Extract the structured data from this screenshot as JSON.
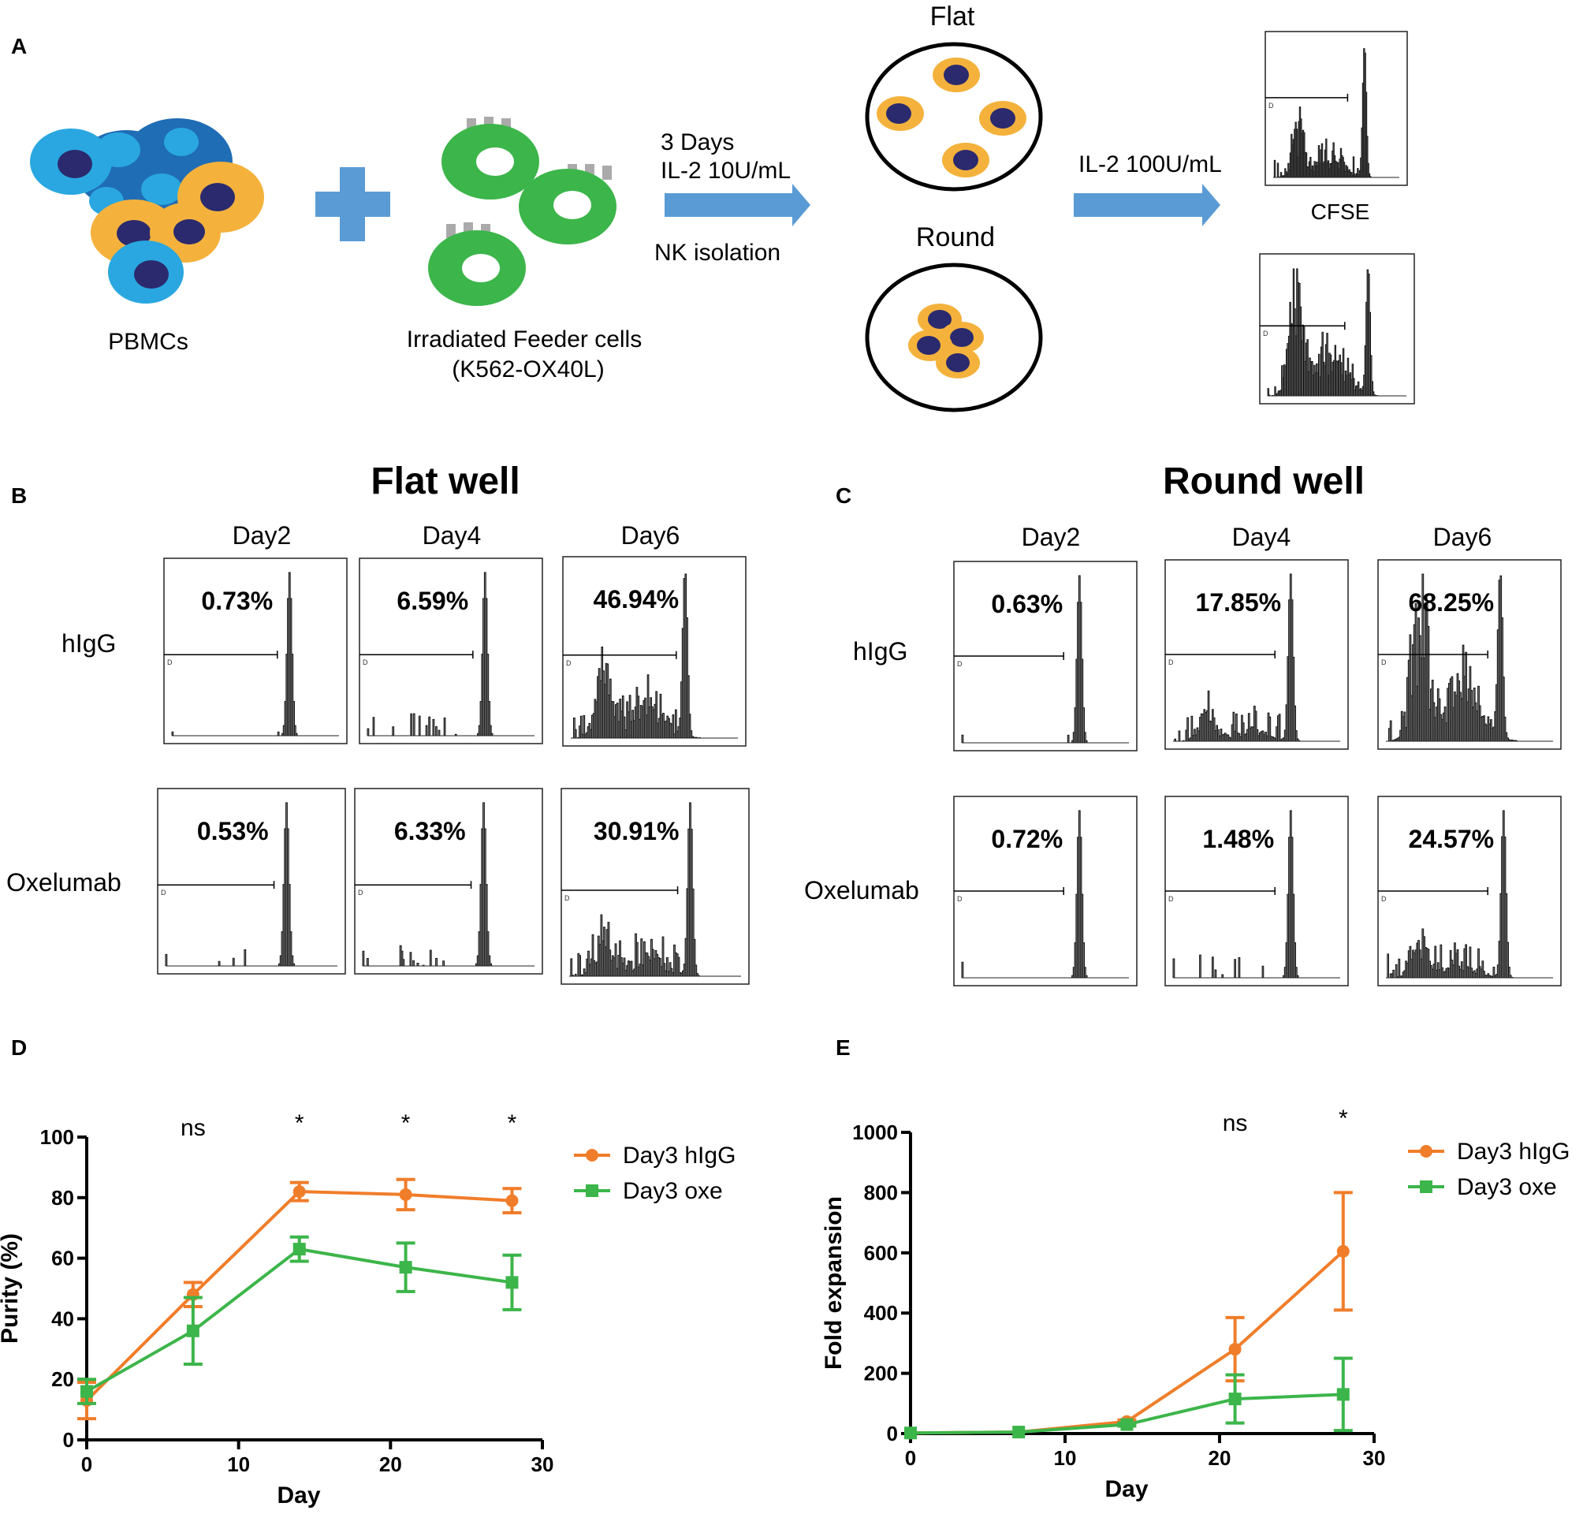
{
  "panels": {
    "A": "A",
    "B": "B",
    "C": "C",
    "D": "D",
    "E": "E"
  },
  "schematic": {
    "pbmc_label": "PBMCs",
    "feeder_label_1": "Irradiated Feeder cells",
    "feeder_label_2": "(K562-OX40L)",
    "step1_line1": "3 Days",
    "step1_line2": "IL-2 10U/mL",
    "step1_line3": "NK isolation",
    "flat_label": "Flat",
    "round_label": "Round",
    "step2_label": "IL-2 100U/mL",
    "cfse_label": "CFSE",
    "gate_label": "D",
    "colors": {
      "blue_cell": "#2aa7e0",
      "dark_blue_cell": "#1f6db5",
      "orange_cell": "#f4b23c",
      "nucleus": "#2b2a6e",
      "feeder": "#3cb54a",
      "arrow": "#5b9bd5"
    }
  },
  "flat_well": {
    "title": "Flat well",
    "days": [
      "Day2",
      "Day4",
      "Day6"
    ],
    "rows": [
      "hIgG",
      "Oxelumab"
    ],
    "values": [
      [
        "0.73%",
        "6.59%",
        "46.94%"
      ],
      [
        "0.53%",
        "6.33%",
        "30.91%"
      ]
    ]
  },
  "round_well": {
    "title": "Round well",
    "days": [
      "Day2",
      "Day4",
      "Day6"
    ],
    "rows": [
      "hIgG",
      "Oxelumab"
    ],
    "values": [
      [
        "0.63%",
        "17.85%",
        "68.25%"
      ],
      [
        "0.72%",
        "1.48%",
        "24.57%"
      ]
    ]
  },
  "chart_data": [
    {
      "type": "line",
      "panel": "D",
      "xlabel": "Day",
      "ylabel": "Purity (%)",
      "xlim": [
        0,
        30
      ],
      "ylim": [
        0,
        100
      ],
      "xticks": [
        "0",
        "10",
        "20",
        "30"
      ],
      "yticks": [
        "0",
        "20",
        "40",
        "60",
        "80",
        "100"
      ],
      "x": [
        0,
        7,
        14,
        21,
        28
      ],
      "series": [
        {
          "name": "Day3 hIgG",
          "color": "#f07d2a",
          "values": [
            13,
            48,
            82,
            81,
            79
          ],
          "errors": [
            6,
            4,
            3,
            5,
            4
          ]
        },
        {
          "name": "Day3 oxe",
          "color": "#3cb54a",
          "values": [
            16,
            36,
            63,
            57,
            52
          ],
          "errors": [
            4,
            11,
            4,
            8,
            9
          ]
        }
      ],
      "annotations": [
        {
          "x": 7,
          "text": "ns"
        },
        {
          "x": 14,
          "text": "*"
        },
        {
          "x": 21,
          "text": "*"
        },
        {
          "x": 28,
          "text": "*"
        }
      ]
    },
    {
      "type": "line",
      "panel": "E",
      "xlabel": "Day",
      "ylabel": "Fold expansion",
      "xlim": [
        0,
        30
      ],
      "ylim": [
        0,
        1000
      ],
      "xticks": [
        "0",
        "10",
        "20",
        "30"
      ],
      "yticks": [
        "0",
        "200",
        "400",
        "600",
        "800",
        "1000"
      ],
      "x": [
        0,
        7,
        14,
        21,
        28
      ],
      "series": [
        {
          "name": "Day3 hIgG",
          "color": "#f07d2a",
          "values": [
            2,
            5,
            40,
            280,
            605
          ],
          "errors": [
            0,
            0,
            5,
            105,
            195
          ]
        },
        {
          "name": "Day3 oxe",
          "color": "#3cb54a",
          "values": [
            2,
            5,
            30,
            115,
            130
          ],
          "errors": [
            0,
            0,
            5,
            80,
            120
          ]
        }
      ],
      "annotations": [
        {
          "x": 21,
          "text": "ns"
        },
        {
          "x": 28,
          "text": "*"
        }
      ]
    }
  ]
}
